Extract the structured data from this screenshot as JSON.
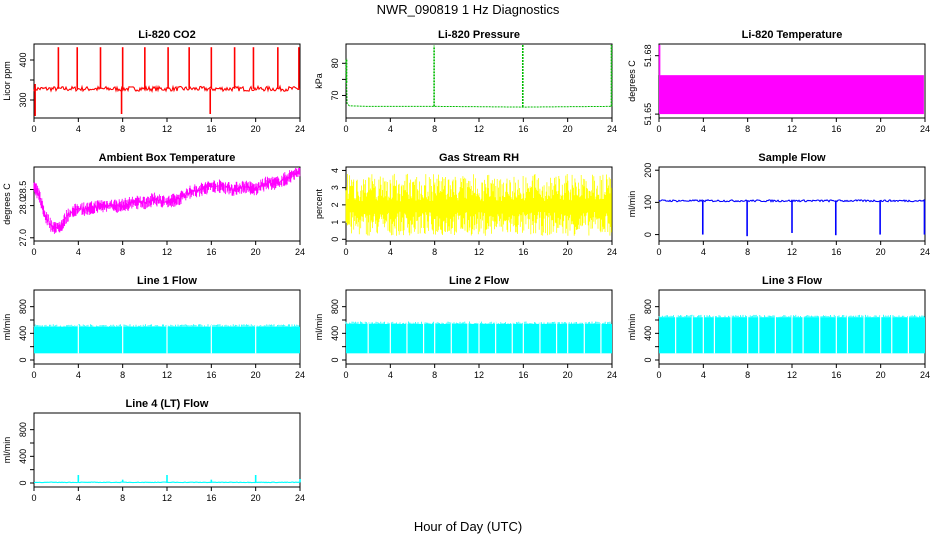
{
  "page": {
    "title": "NWR_090819  1 Hz Diagnostics",
    "xlabel": "Hour of Day (UTC)"
  },
  "chart_data": [
    {
      "type": "line",
      "title": "Li-820 CO2",
      "ylabel": "Licor ppm",
      "color": "#ff0000",
      "xlim": [
        0,
        24
      ],
      "ylim": [
        255,
        440
      ],
      "xticks": [
        0,
        4,
        8,
        12,
        16,
        20,
        24
      ],
      "yticks": [
        300,
        350,
        400
      ],
      "yticklabels": [
        "300",
        "",
        "400"
      ],
      "baseline": 328,
      "noise": 6,
      "spikes": [
        {
          "x": 0.1,
          "y": 260
        },
        {
          "x": 0.1,
          "y": 340
        },
        {
          "x": 2.2,
          "y": 432
        },
        {
          "x": 3.9,
          "y": 432
        },
        {
          "x": 6.0,
          "y": 432
        },
        {
          "x": 7.9,
          "y": 265
        },
        {
          "x": 8.0,
          "y": 432
        },
        {
          "x": 10.0,
          "y": 432
        },
        {
          "x": 12.1,
          "y": 432
        },
        {
          "x": 14.0,
          "y": 432
        },
        {
          "x": 15.9,
          "y": 265
        },
        {
          "x": 16.0,
          "y": 432
        },
        {
          "x": 18.1,
          "y": 432
        },
        {
          "x": 19.8,
          "y": 432
        },
        {
          "x": 22.0,
          "y": 432
        },
        {
          "x": 23.9,
          "y": 432
        }
      ]
    },
    {
      "type": "line",
      "title": "Li-820 Pressure",
      "ylabel": "kPa",
      "color": "#00bb00",
      "xlim": [
        0,
        24
      ],
      "ylim": [
        63,
        86
      ],
      "xticks": [
        0,
        4,
        8,
        12,
        16,
        20,
        24
      ],
      "yticks": [
        70,
        75,
        80
      ],
      "yticklabels": [
        "70",
        "",
        "80"
      ],
      "series": [
        {
          "x": [
            0,
            0.05,
            0.1,
            0.3,
            2,
            8,
            12,
            16,
            20,
            23.9
          ],
          "y": [
            81,
            74,
            67.5,
            66.8,
            66.6,
            66.6,
            66.5,
            66.4,
            66.5,
            66.6
          ]
        }
      ],
      "spikes": [
        {
          "x": 0.05,
          "y": 81.5
        },
        {
          "x": 7.95,
          "y": 85.5
        },
        {
          "x": 15.95,
          "y": 85.8
        },
        {
          "x": 23.95,
          "y": 85.8
        }
      ]
    },
    {
      "type": "area",
      "title": "Li-820 Temperature",
      "ylabel": "degrees C",
      "color": "#ff00ff",
      "xlim": [
        0,
        24
      ],
      "ylim": [
        51.648,
        51.686
      ],
      "xticks": [
        0,
        4,
        8,
        12,
        16,
        20,
        24
      ],
      "yticks": [
        51.65,
        51.68
      ],
      "yticklabels": [
        "51.65",
        "51.68"
      ],
      "band": {
        "x0": 0,
        "x1": 23.9,
        "ymin": 51.65,
        "ymax": 51.67
      },
      "spikes": [
        {
          "x": 0.05,
          "y": 51.686
        }
      ]
    },
    {
      "type": "line",
      "title": "Ambient Box Temperature",
      "ylabel": "degrees C",
      "color": "#ff00ff",
      "xlim": [
        0,
        24
      ],
      "ylim": [
        26.9,
        29.2
      ],
      "xticks": [
        0,
        4,
        8,
        12,
        16,
        20,
        24
      ],
      "yticks": [
        27.0,
        28.0,
        28.5
      ],
      "yticklabels": [
        "27.0",
        "28.0",
        "28.5"
      ],
      "series": [
        {
          "x": [
            0,
            0.5,
            1.0,
            1.5,
            2.0,
            2.5,
            3,
            4,
            5,
            6,
            7,
            8,
            9,
            10,
            11,
            12,
            13,
            14,
            15,
            16,
            17,
            18,
            19,
            20,
            21,
            22,
            23,
            23.5,
            24
          ],
          "y": [
            28.6,
            28.3,
            27.7,
            27.4,
            27.3,
            27.4,
            27.7,
            27.9,
            27.9,
            28.0,
            28.0,
            28.0,
            28.1,
            28.1,
            28.2,
            28.1,
            28.2,
            28.4,
            28.5,
            28.6,
            28.6,
            28.5,
            28.6,
            28.5,
            28.7,
            28.7,
            28.9,
            29.0,
            29.0
          ]
        }
      ],
      "noise": 0.22
    },
    {
      "type": "area",
      "title": "Gas Stream RH",
      "ylabel": "percent",
      "color": "#ffff00",
      "xlim": [
        0,
        24
      ],
      "ylim": [
        -0.1,
        4.2
      ],
      "xticks": [
        0,
        4,
        8,
        12,
        16,
        20,
        24
      ],
      "yticks": [
        0,
        1,
        2,
        3,
        4
      ],
      "yticklabels": [
        "0",
        "1",
        "2",
        "3",
        "4"
      ],
      "band": {
        "x0": 0,
        "x1": 24,
        "ymin": 0.2,
        "ymax": 3.8
      }
    },
    {
      "type": "line",
      "title": "Sample Flow",
      "ylabel": "ml/min",
      "color": "#0000ff",
      "xlim": [
        0,
        24
      ],
      "ylim": [
        -20,
        210
      ],
      "xticks": [
        0,
        4,
        8,
        12,
        16,
        20,
        24
      ],
      "yticks": [
        0,
        100,
        200
      ],
      "yticklabels": [
        "0",
        "100",
        "200"
      ],
      "baseline": 105,
      "noise": 3,
      "spikes": [
        {
          "x": 3.95,
          "y": 0
        },
        {
          "x": 7.95,
          "y": -5
        },
        {
          "x": 12.0,
          "y": 5
        },
        {
          "x": 15.95,
          "y": -2
        },
        {
          "x": 19.95,
          "y": 0
        },
        {
          "x": 23.95,
          "y": 0
        }
      ]
    },
    {
      "type": "area",
      "title": "Line 1 Flow",
      "ylabel": "ml/min",
      "color": "#00ffff",
      "xlim": [
        0,
        24
      ],
      "ylim": [
        -60,
        1050
      ],
      "xticks": [
        0,
        4,
        8,
        12,
        16,
        20,
        24
      ],
      "yticks": [
        0,
        200,
        400,
        600,
        800
      ],
      "yticklabels": [
        "0",
        "",
        "400",
        "",
        "800"
      ],
      "band": {
        "x0": 0,
        "x1": 24,
        "ymin": 100,
        "ymax": 500
      },
      "gaps": [
        4,
        8,
        12,
        16,
        20
      ]
    },
    {
      "type": "area",
      "title": "Line 2 Flow",
      "ylabel": "ml/min",
      "color": "#00ffff",
      "xlim": [
        0,
        24
      ],
      "ylim": [
        -60,
        1050
      ],
      "xticks": [
        0,
        4,
        8,
        12,
        16,
        20,
        24
      ],
      "yticks": [
        0,
        200,
        400,
        600,
        800
      ],
      "yticklabels": [
        "0",
        "",
        "400",
        "",
        "800"
      ],
      "band": {
        "x0": 0,
        "x1": 24,
        "ymin": 100,
        "ymax": 540
      },
      "gaps": [
        2,
        4,
        5.5,
        7,
        8,
        9.5,
        11,
        12,
        13.5,
        15,
        16,
        17.5,
        19,
        20,
        21.5,
        23
      ]
    },
    {
      "type": "area",
      "title": "Line 3 Flow",
      "ylabel": "ml/min",
      "color": "#00ffff",
      "xlim": [
        0,
        24
      ],
      "ylim": [
        -60,
        1050
      ],
      "xticks": [
        0,
        4,
        8,
        12,
        16,
        20,
        24
      ],
      "yticks": [
        0,
        200,
        400,
        600,
        800
      ],
      "yticklabels": [
        "0",
        "",
        "400",
        "",
        "800"
      ],
      "band": {
        "x0": 0,
        "x1": 24,
        "ymin": 100,
        "ymax": 640
      },
      "gaps": [
        1.5,
        3,
        4,
        5,
        6.5,
        8,
        9,
        10.5,
        12,
        13,
        14.5,
        16,
        17,
        18.5,
        20,
        21,
        22.5
      ]
    },
    {
      "type": "line",
      "title": "Line 4 (LT) Flow",
      "ylabel": "ml/min",
      "color": "#00ffff",
      "xlim": [
        0,
        24
      ],
      "ylim": [
        -60,
        1050
      ],
      "xticks": [
        0,
        4,
        8,
        12,
        16,
        20,
        24
      ],
      "yticks": [
        0,
        200,
        400,
        600,
        800
      ],
      "yticklabels": [
        "0",
        "",
        "400",
        "",
        "800"
      ],
      "baseline": 10,
      "noise": 4,
      "spikes": [
        {
          "x": 4.0,
          "y": 120
        },
        {
          "x": 8.0,
          "y": 50
        },
        {
          "x": 12.0,
          "y": 120
        },
        {
          "x": 16.0,
          "y": 50
        },
        {
          "x": 20.0,
          "y": 120
        },
        {
          "x": 24.0,
          "y": 60
        }
      ]
    }
  ]
}
